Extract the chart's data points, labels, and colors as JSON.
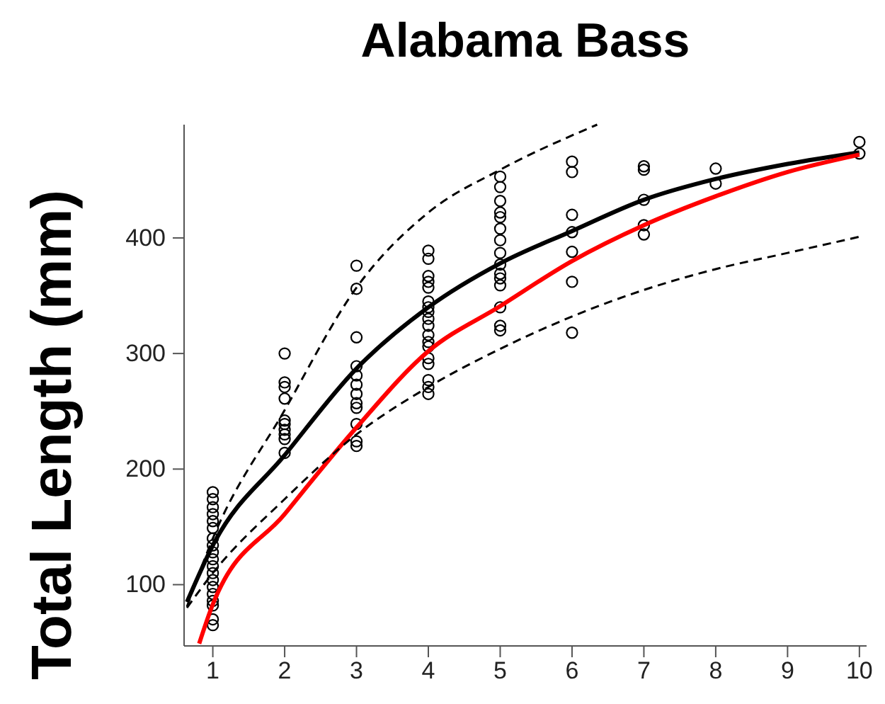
{
  "chart_data": {
    "type": "scatter",
    "title": "Alabama Bass",
    "ylabel": "Total Length (mm)",
    "xlim": [
      0.6,
      10.1
    ],
    "ylim": [
      47,
      498
    ],
    "xticks": [
      1,
      2,
      3,
      4,
      5,
      6,
      7,
      8,
      9,
      10
    ],
    "yticks": [
      100,
      200,
      300,
      400
    ],
    "grid": false,
    "series": [
      {
        "color": "#000000",
        "marker": "circle",
        "x": [
          1,
          1,
          1,
          1,
          1,
          1,
          1,
          1,
          1,
          1,
          1,
          1,
          1,
          1,
          1,
          1,
          1,
          1,
          1,
          2,
          2,
          2,
          2,
          2,
          2,
          2,
          2,
          2,
          2,
          3,
          3,
          3,
          3,
          3,
          3,
          3,
          3,
          3,
          3,
          3,
          3,
          4,
          4,
          4,
          4,
          4,
          4,
          4,
          4,
          4,
          4,
          4,
          4,
          4,
          4,
          4,
          4,
          4,
          4,
          5,
          5,
          5,
          5,
          5,
          5,
          5,
          5,
          5,
          5,
          5,
          5,
          5,
          5,
          5,
          6,
          6,
          6,
          6,
          6,
          6,
          6,
          7,
          7,
          7,
          7,
          7,
          8,
          8,
          10,
          10
        ],
        "values": [
          180,
          174,
          167,
          161,
          155,
          149,
          140,
          134,
          128,
          122,
          116,
          110,
          104,
          98,
          92,
          86,
          82,
          70,
          65,
          300,
          275,
          271,
          261,
          242,
          239,
          234,
          230,
          226,
          214,
          376,
          356,
          314,
          289,
          281,
          273,
          265,
          257,
          253,
          239,
          224,
          220,
          389,
          382,
          367,
          362,
          357,
          345,
          340,
          336,
          330,
          324,
          316,
          310,
          306,
          296,
          291,
          277,
          271,
          265,
          453,
          444,
          432,
          422,
          418,
          408,
          398,
          387,
          377,
          369,
          365,
          359,
          340,
          324,
          320,
          466,
          457,
          420,
          405,
          388,
          362,
          318,
          462,
          459,
          433,
          411,
          403,
          460,
          447,
          483,
          473
        ]
      },
      {
        "type": "line",
        "color": "#000000",
        "marker": "none",
        "line_style": "solid",
        "x": [
          0.64,
          1,
          2,
          3,
          4,
          5,
          6,
          7,
          8,
          9,
          10
        ],
        "values": [
          85,
          134,
          212,
          287,
          340,
          378,
          406,
          433,
          451,
          464,
          474
        ]
      },
      {
        "type": "line",
        "color": "#ff0000",
        "marker": "none",
        "line_style": "solid",
        "x": [
          0.81,
          1,
          2,
          3,
          4,
          5,
          6,
          7,
          8,
          9,
          10
        ],
        "values": [
          49,
          83,
          161,
          236,
          302,
          341,
          380,
          411,
          436,
          457,
          472
        ]
      },
      {
        "type": "line",
        "color": "#000000",
        "marker": "none",
        "line_style": "dashed",
        "x": [
          0.64,
          1,
          2,
          3,
          4,
          5,
          6.35
        ],
        "values": [
          81,
          140,
          251,
          357,
          422,
          459,
          498
        ]
      },
      {
        "type": "line",
        "color": "#000000",
        "marker": "none",
        "line_style": "dashed",
        "x": [
          0.64,
          1,
          2,
          3,
          4,
          5,
          6,
          7,
          8,
          9,
          10
        ],
        "values": [
          80,
          110,
          174,
          230,
          271,
          304,
          332,
          355,
          373,
          387,
          401
        ]
      }
    ]
  }
}
